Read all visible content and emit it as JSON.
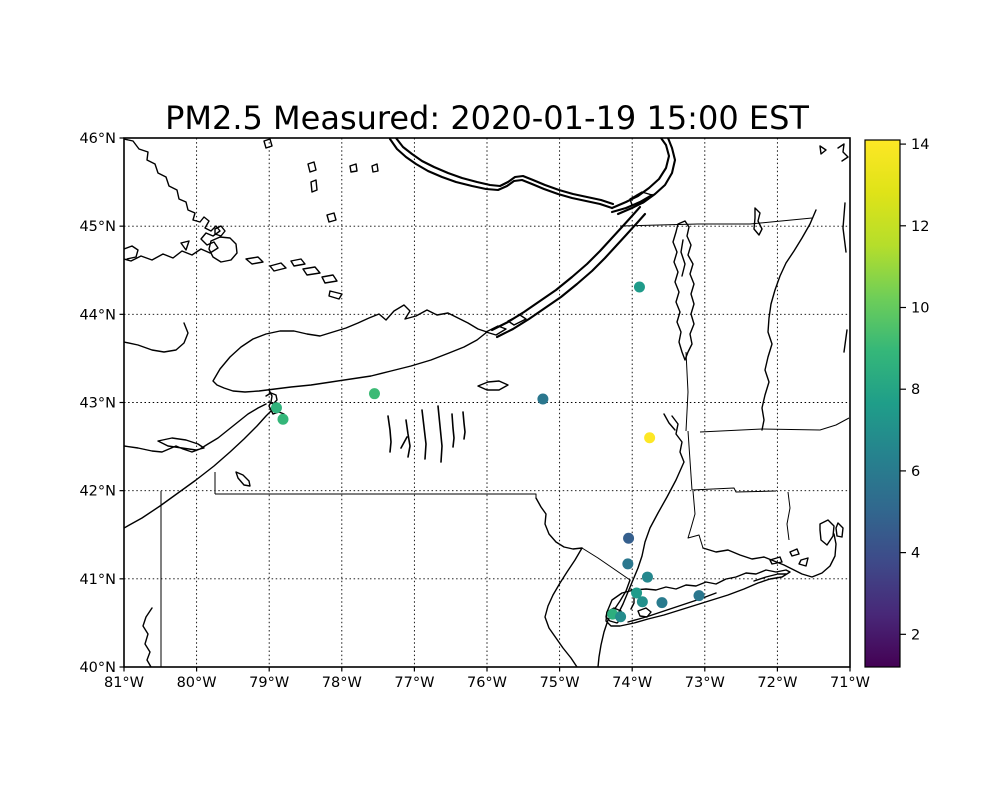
{
  "figure": {
    "background": "#ffffff"
  },
  "chart_data": {
    "type": "scatter",
    "title": "PM2.5 Measured: 2020-01-19 15:00 EST",
    "geography": "Outline map: Lake Ontario, Lake Erie, St. Lawrence River, Ottawa River, Lake Champlain, Finger Lakes, Long Island, and state borders (NY, PA, OH, NJ, CT, MA, VT, NH, RI)",
    "grid": "dotted",
    "x_axis": {
      "tick_labels": [
        "81°W",
        "80°W",
        "79°W",
        "78°W",
        "77°W",
        "76°W",
        "75°W",
        "74°W",
        "73°W",
        "72°W",
        "71°W"
      ],
      "tick_values": [
        -81,
        -80,
        -79,
        -78,
        -77,
        -76,
        -75,
        -74,
        -73,
        -72,
        -71
      ],
      "range": [
        -81,
        -71
      ]
    },
    "y_axis": {
      "tick_labels": [
        "40°N",
        "41°N",
        "42°N",
        "43°N",
        "44°N",
        "45°N",
        "46°N"
      ],
      "tick_values": [
        40,
        41,
        42,
        43,
        44,
        45,
        46
      ],
      "range": [
        40,
        46
      ]
    },
    "colorbar": {
      "tick_labels": [
        "2",
        "4",
        "6",
        "8",
        "10",
        "12",
        "14"
      ],
      "tick_values": [
        2,
        4,
        6,
        8,
        10,
        12,
        14
      ],
      "vmin": 1.2,
      "vmax": 14.1,
      "colormap": "viridis",
      "stops": [
        {
          "t": 0.0,
          "color": "#440154"
        },
        {
          "t": 0.1,
          "color": "#482878"
        },
        {
          "t": 0.2,
          "color": "#3e4a89"
        },
        {
          "t": 0.3,
          "color": "#31688e"
        },
        {
          "t": 0.4,
          "color": "#26828e"
        },
        {
          "t": 0.5,
          "color": "#1f9e89"
        },
        {
          "t": 0.6,
          "color": "#35b779"
        },
        {
          "t": 0.7,
          "color": "#6ece58"
        },
        {
          "t": 0.8,
          "color": "#b5de2b"
        },
        {
          "t": 0.9,
          "color": "#dfe318"
        },
        {
          "t": 1.0,
          "color": "#fde725"
        }
      ]
    },
    "points": [
      {
        "lon": -73.9,
        "lat": 44.31,
        "value": 7.5
      },
      {
        "lon": -77.55,
        "lat": 43.1,
        "value": 9.1
      },
      {
        "lon": -75.23,
        "lat": 43.04,
        "value": 5.8
      },
      {
        "lon": -78.9,
        "lat": 42.94,
        "value": 8.7
      },
      {
        "lon": -78.81,
        "lat": 42.81,
        "value": 8.9
      },
      {
        "lon": -73.76,
        "lat": 42.6,
        "value": 14.1
      },
      {
        "lon": -74.05,
        "lat": 41.46,
        "value": 4.7
      },
      {
        "lon": -74.06,
        "lat": 41.17,
        "value": 5.8
      },
      {
        "lon": -73.79,
        "lat": 41.02,
        "value": 6.6
      },
      {
        "lon": -73.94,
        "lat": 40.84,
        "value": 7.5
      },
      {
        "lon": -73.86,
        "lat": 40.74,
        "value": 7.0
      },
      {
        "lon": -73.59,
        "lat": 40.73,
        "value": 6.0
      },
      {
        "lon": -74.27,
        "lat": 40.6,
        "value": 8.5
      },
      {
        "lon": -74.16,
        "lat": 40.57,
        "value": 6.8
      },
      {
        "lon": -73.08,
        "lat": 40.81,
        "value": 5.8
      }
    ]
  }
}
